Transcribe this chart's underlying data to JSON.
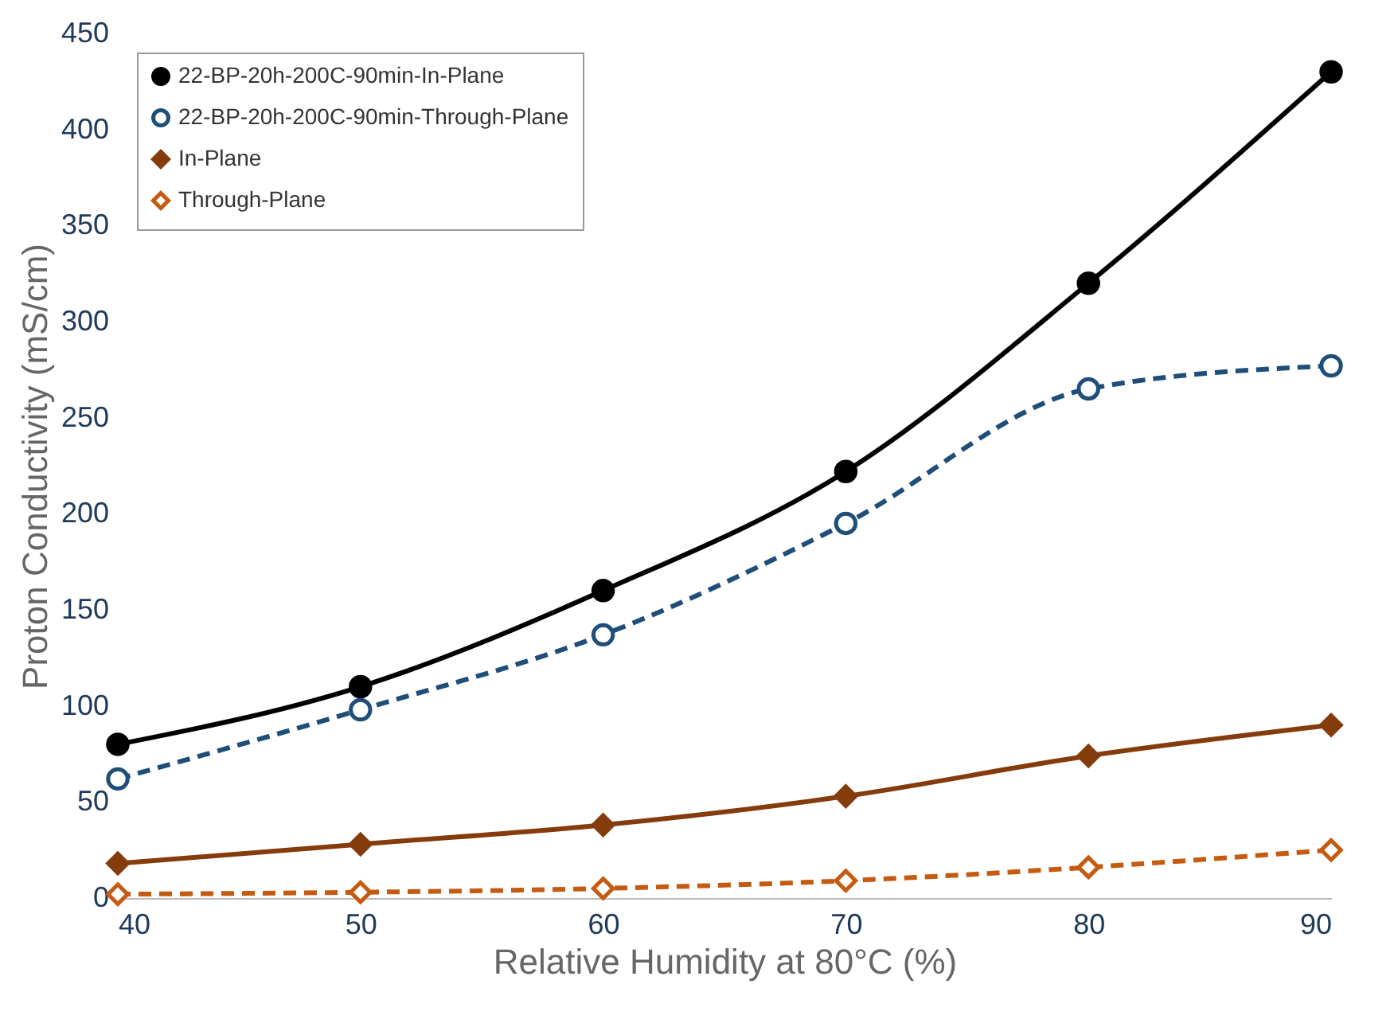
{
  "chart_data": {
    "type": "line",
    "xlabel": "Relative Humidity at 80°C (%)",
    "ylabel": "Proton Conductivity (mS/cm)",
    "x": [
      40,
      50,
      60,
      70,
      80,
      90
    ],
    "series": [
      {
        "name": "22-BP-20h-200C-90min-In-Plane",
        "color": "#000000",
        "marker": "circle",
        "line_style": "solid",
        "values": [
          80,
          110,
          160,
          222,
          320,
          430
        ]
      },
      {
        "name": "22-BP-20h-200C-90min-Through-Plane",
        "color": "#1f4e79",
        "marker": "circle",
        "line_style": "dashed",
        "values": [
          62,
          98,
          137,
          195,
          265,
          277
        ]
      },
      {
        "name": "In-Plane",
        "color": "#843c0c",
        "marker": "diamond",
        "line_style": "solid",
        "values": [
          18,
          28,
          38,
          53,
          74,
          90
        ]
      },
      {
        "name": "Through-Plane",
        "color": "#c55a11",
        "marker": "diamond",
        "line_style": "dashed",
        "values": [
          2,
          3,
          5,
          9,
          16,
          25
        ]
      }
    ],
    "xlim": [
      40,
      90
    ],
    "xticks": [
      40,
      50,
      60,
      70,
      80,
      90
    ],
    "ylim": [
      0,
      450
    ],
    "yticks": [
      0,
      50,
      100,
      150,
      200,
      250,
      300,
      350,
      400,
      450
    ],
    "grid": false,
    "legend": "top left"
  }
}
